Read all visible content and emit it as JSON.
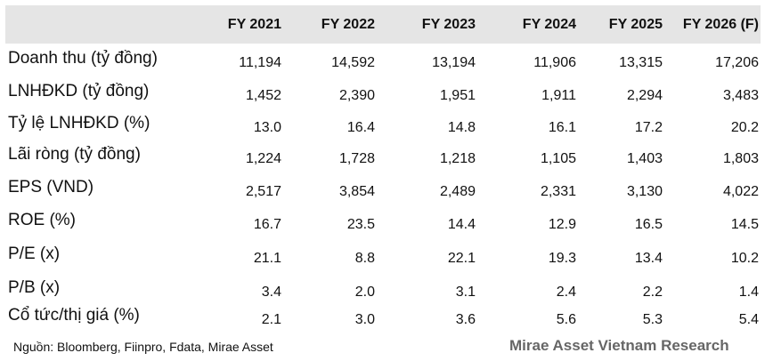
{
  "table": {
    "columns": [
      "FY 2021",
      "FY 2022",
      "FY 2023",
      "FY 2024",
      "FY 2025",
      "FY 2026 (F)"
    ],
    "rows": [
      {
        "label": "Doanh thu (tỷ đồng)",
        "values": [
          "11,194",
          "14,592",
          "13,194",
          "11,906",
          "13,315",
          "17,206"
        ]
      },
      {
        "label": "LNHĐKD (tỷ đồng)",
        "values": [
          "1,452",
          "2,390",
          "1,951",
          "1,911",
          "2,294",
          "3,483"
        ]
      },
      {
        "label": "Tỷ lệ LNHĐKD (%)",
        "values": [
          "13.0",
          "16.4",
          "14.8",
          "16.1",
          "17.2",
          "20.2"
        ]
      },
      {
        "label": "Lãi ròng (tỷ đồng)",
        "values": [
          "1,224",
          "1,728",
          "1,218",
          "1,105",
          "1,403",
          "1,803"
        ]
      },
      {
        "label": "EPS (VND)",
        "values": [
          "2,517",
          "3,854",
          "2,489",
          "2,331",
          "3,130",
          "4,022"
        ]
      },
      {
        "label": "ROE (%)",
        "values": [
          "16.7",
          "23.5",
          "14.4",
          "12.9",
          "16.5",
          "14.5"
        ]
      },
      {
        "label": "P/E (x)",
        "values": [
          "21.1",
          "8.8",
          "22.1",
          "19.3",
          "13.4",
          "10.2"
        ]
      },
      {
        "label": "P/B (x)",
        "values": [
          "3.4",
          "2.0",
          "3.1",
          "2.4",
          "2.2",
          "1.4"
        ]
      },
      {
        "label": "Cổ tức/thị giá (%)",
        "values": [
          "2.1",
          "3.0",
          "3.6",
          "5.6",
          "5.3",
          "5.4"
        ]
      }
    ]
  },
  "footer": {
    "source": "Nguồn: Bloomberg, Fiinpro, Fdata, Mirae Asset",
    "brand": "Mirae Asset Vietnam Research"
  }
}
